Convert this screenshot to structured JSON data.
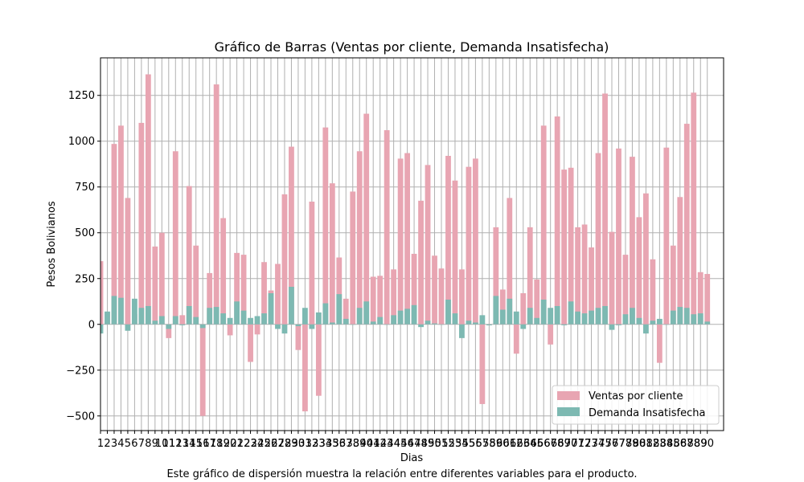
{
  "chart_data": {
    "type": "bar",
    "title": "Gráfico de Barras (Ventas por cliente, Demanda Insatisfecha)",
    "xlabel": "Dias",
    "ylabel": "Pesos Bolivianos",
    "ylim": [
      -580,
      1455
    ],
    "yticks": [
      -500,
      -250,
      0,
      250,
      500,
      750,
      1000,
      1250
    ],
    "ytick_labels": [
      "−500",
      "−250",
      "0",
      "250",
      "500",
      "750",
      "1000",
      "1250"
    ],
    "grid": true,
    "legend_position": "lower-right",
    "categories": [
      "1",
      "2",
      "3",
      "4",
      "5",
      "6",
      "7",
      "8",
      "9",
      "10",
      "11",
      "12",
      "13",
      "14",
      "15",
      "16",
      "17",
      "18",
      "19",
      "20",
      "21",
      "22",
      "23",
      "24",
      "25",
      "26",
      "27",
      "28",
      "29",
      "30",
      "31",
      "32",
      "33",
      "34",
      "35",
      "36",
      "37",
      "38",
      "39",
      "40",
      "41",
      "42",
      "43",
      "44",
      "45",
      "46",
      "47",
      "48",
      "49",
      "50",
      "51",
      "52",
      "53",
      "54",
      "55",
      "56",
      "57",
      "58",
      "59",
      "60",
      "61",
      "62",
      "63",
      "64",
      "65",
      "66",
      "67",
      "68",
      "69",
      "70",
      "71",
      "72",
      "73",
      "74",
      "75",
      "76",
      "77",
      "78",
      "79",
      "80",
      "81",
      "82",
      "83",
      "84",
      "85",
      "86",
      "87",
      "88",
      "89",
      "90"
    ],
    "series": [
      {
        "name": "Ventas por cliente",
        "color": "#e8a5b2",
        "values": [
          345,
          65,
          985,
          1085,
          690,
          55,
          1100,
          1365,
          425,
          500,
          -75,
          945,
          50,
          755,
          430,
          -500,
          280,
          1310,
          580,
          -60,
          390,
          380,
          -205,
          -55,
          340,
          185,
          330,
          710,
          970,
          -140,
          -475,
          670,
          -390,
          1075,
          770,
          365,
          140,
          725,
          945,
          1150,
          260,
          265,
          1060,
          300,
          905,
          935,
          385,
          675,
          870,
          375,
          305,
          920,
          785,
          300,
          860,
          905,
          -435,
          -5,
          530,
          190,
          690,
          -160,
          170,
          530,
          245,
          1085,
          -110,
          1135,
          845,
          855,
          530,
          545,
          420,
          935,
          1260,
          505,
          960,
          380,
          915,
          585,
          715,
          355,
          -210,
          965,
          430,
          695,
          1095,
          1265,
          285,
          275
        ]
      },
      {
        "name": "Demanda Insatisfecha",
        "color": "#7db9b2",
        "values": [
          -50,
          70,
          155,
          145,
          -35,
          140,
          90,
          100,
          20,
          45,
          -25,
          45,
          -5,
          100,
          40,
          -20,
          90,
          95,
          60,
          35,
          125,
          75,
          35,
          45,
          60,
          170,
          -25,
          -50,
          205,
          -10,
          90,
          -25,
          65,
          115,
          10,
          165,
          30,
          0,
          90,
          125,
          15,
          40,
          0,
          50,
          75,
          85,
          105,
          -15,
          20,
          5,
          0,
          135,
          60,
          -75,
          20,
          10,
          50,
          -5,
          155,
          80,
          140,
          70,
          -25,
          90,
          35,
          135,
          90,
          100,
          -5,
          125,
          70,
          60,
          75,
          90,
          100,
          -30,
          -5,
          55,
          90,
          35,
          -50,
          20,
          30,
          0,
          75,
          95,
          90,
          55,
          60,
          15
        ]
      }
    ]
  }
}
